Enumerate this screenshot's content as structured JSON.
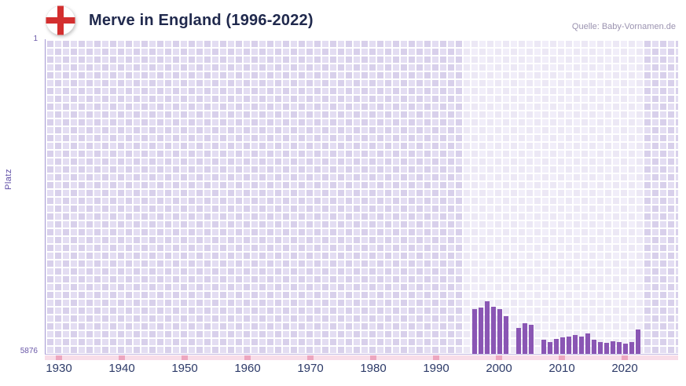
{
  "header": {
    "title": "Merve in England (1996-2022)",
    "source": "Quelle: Baby-Vornamen.de",
    "flag_icon": "england-flag"
  },
  "axes": {
    "y_label": "Platz",
    "y_top": "1",
    "y_bottom": "5876",
    "x_ticks": [
      1930,
      1940,
      1950,
      1960,
      1970,
      1980,
      1990,
      2000,
      2010,
      2020
    ]
  },
  "colors": {
    "bar": "#8a56b4",
    "grid_light": "#e3ddf2",
    "grid_dark": "#d8d0eb",
    "strip_pink": "#f8dde8",
    "tick_pink": "#eda6bf",
    "flag_red": "#d32f2f",
    "title_text": "#20294d",
    "axis_text": "#2c3a68",
    "y_text": "#6a58a8",
    "source_text": "#9b93b0"
  },
  "chart_data": {
    "type": "bar",
    "title": "Merve in England (1996-2022)",
    "xlabel": "",
    "ylabel": "Platz",
    "legend": false,
    "grid": true,
    "y_axis_inverted": true,
    "ylim": [
      1,
      5876
    ],
    "x_axis_range": [
      1928,
      2028
    ],
    "highlight_band_years": [
      1994,
      2023
    ],
    "years": [
      1996,
      1997,
      1998,
      1999,
      2000,
      2001,
      2002,
      2003,
      2004,
      2005,
      2006,
      2007,
      2008,
      2009,
      2010,
      2011,
      2012,
      2013,
      2014,
      2015,
      2016,
      2017,
      2018,
      2019,
      2020,
      2021,
      2022
    ],
    "ranks": [
      5050,
      5020,
      4890,
      5000,
      5040,
      5180,
      null,
      5390,
      5300,
      5340,
      null,
      5610,
      5650,
      5600,
      5570,
      5550,
      5520,
      5560,
      5500,
      5620,
      5650,
      5670,
      5640,
      5660,
      5680,
      5650,
      5430
    ],
    "note_values_estimated_from_pixels": true
  }
}
